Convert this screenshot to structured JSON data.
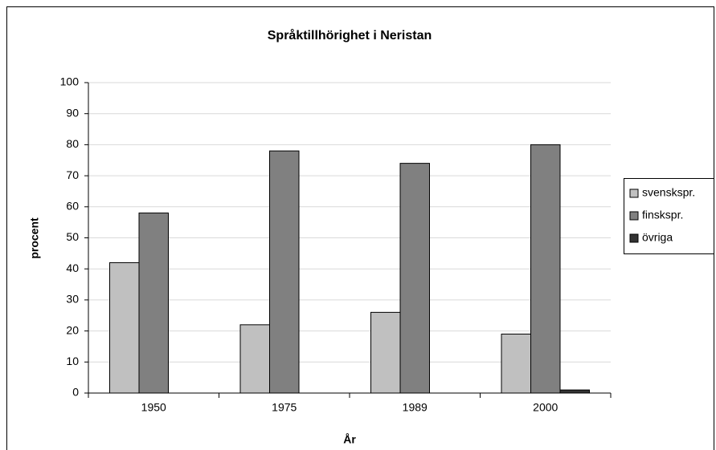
{
  "chart_data": {
    "type": "bar",
    "title": "Språktillhörighet i Neristan",
    "x_label": "År",
    "y_label": "procent",
    "categories": [
      "1950",
      "1975",
      "1989",
      "2000"
    ],
    "series": [
      {
        "name": "svenskspr.",
        "color": "#c0c0c0",
        "values": [
          42,
          22,
          26,
          19
        ]
      },
      {
        "name": "finskspr.",
        "color": "#808080",
        "values": [
          58,
          78,
          74,
          80
        ]
      },
      {
        "name": "övriga",
        "color": "#333333",
        "values": [
          0,
          0,
          0,
          1
        ]
      }
    ],
    "ylim": [
      0,
      100
    ],
    "yticks": [
      0,
      10,
      20,
      30,
      40,
      50,
      60,
      70,
      80,
      90,
      100
    ],
    "grid": true,
    "legend": "right"
  }
}
